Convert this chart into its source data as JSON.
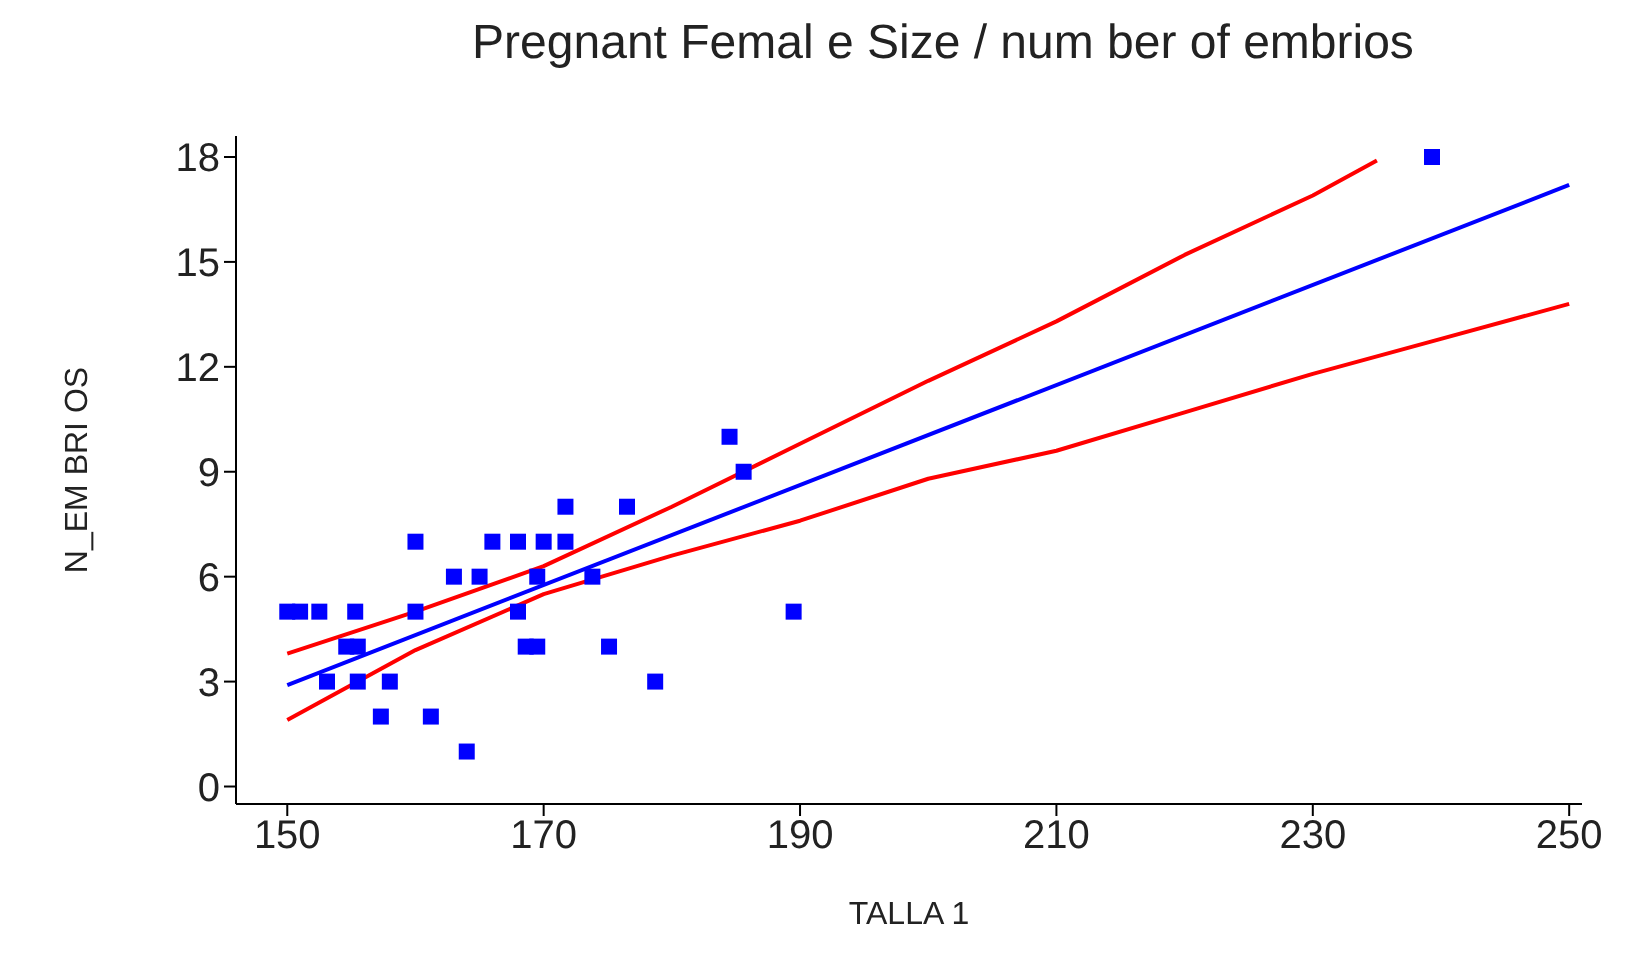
{
  "chart_data": {
    "type": "scatter",
    "title": "Pregnant Femal e Size  / num ber of embrios",
    "xlabel": "TALLA 1",
    "ylabel": "N_EM BRI OS",
    "xlim": [
      146,
      251
    ],
    "xticks": [
      150,
      170,
      190,
      210,
      230,
      250
    ],
    "ylim": [
      -0.5,
      18.6
    ],
    "yticks": [
      0,
      3,
      6,
      9,
      12,
      15,
      18
    ],
    "grid": false,
    "series": [
      {
        "marker": "square",
        "color": "#0000ff",
        "x": [
          150,
          151,
          152.5,
          155.3,
          154.6,
          155.5,
          153.1,
          155.5,
          158,
          157.3,
          161.2,
          164,
          160,
          160,
          163,
          165,
          166,
          168,
          170,
          168,
          168.6,
          169.5,
          169.5,
          171.7,
          171.7,
          173.8,
          175.1,
          176.5,
          178.7,
          184.5,
          185.6,
          189.5,
          239.3
        ],
        "values": [
          5,
          5,
          5,
          5,
          4,
          4,
          3,
          3,
          3,
          2,
          2,
          1,
          7,
          5,
          6,
          6,
          7,
          7,
          7,
          5,
          4,
          4,
          6,
          8,
          7,
          6,
          4,
          8,
          3,
          10,
          9,
          5,
          18
        ]
      },
      {
        "type": "line",
        "color": "#0000ff",
        "x": [
          150,
          250
        ],
        "values": [
          2.9,
          17.2
        ]
      },
      {
        "type": "line",
        "color": "#ff0000",
        "x": [
          150,
          160,
          170,
          180,
          190,
          200,
          210,
          220,
          230,
          235
        ],
        "values": [
          3.8,
          5.0,
          6.3,
          8.0,
          9.8,
          11.6,
          13.3,
          15.2,
          16.9,
          17.9
        ]
      },
      {
        "type": "line",
        "color": "#ff0000",
        "x": [
          150,
          160,
          170,
          180,
          190,
          200,
          210,
          220,
          230,
          240,
          250
        ],
        "values": [
          1.9,
          3.9,
          5.5,
          6.6,
          7.6,
          8.8,
          9.6,
          10.7,
          11.8,
          12.8,
          13.8
        ]
      }
    ]
  }
}
